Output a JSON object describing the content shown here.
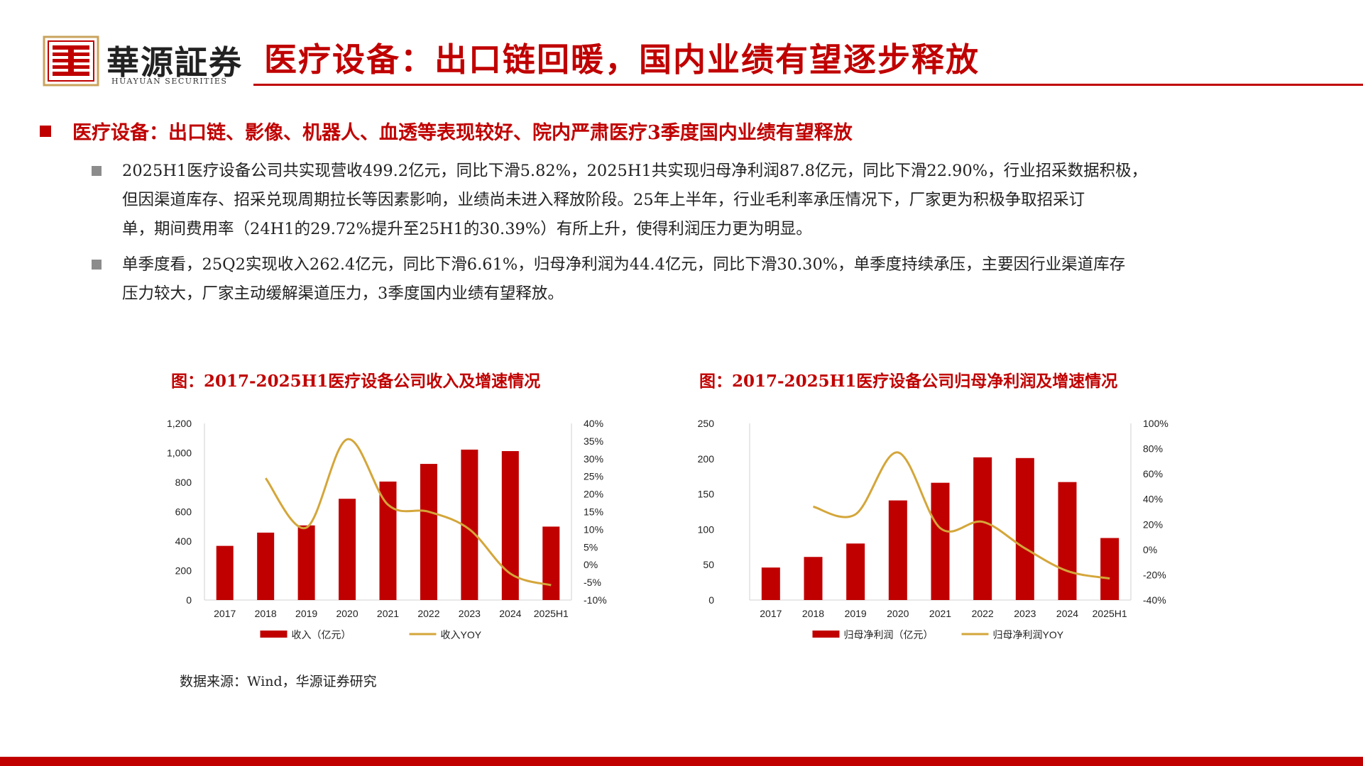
{
  "brand": {
    "name_cn": "華源証券",
    "name_en": "HUAYUAN SECURITIES",
    "logo_icon": "huayuan-seal-icon",
    "accent_color": "#c00000"
  },
  "page_title": "医疗设备：出口链回暖，国内业绩有望逐步释放",
  "headline": "医疗设备：出口链、影像、机器人、血透等表现较好、院内严肃医疗3季度国内业绩有望释放",
  "paragraphs": [
    {
      "lines": [
        "2025H1医疗设备公司共实现营收499.2亿元，同比下滑5.82%，2025H1共实现归母净利润87.8亿元，同比下滑22.90%，行业招采数据积极，",
        "但因渠道库存、招采兑现周期拉长等因素影响，业绩尚未进入释放阶段。25年上半年，行业毛利率承压情况下，厂家更为积极争取招采订",
        "单，期间费用率（24H1的29.72%提升至25H1的30.39%）有所上升，使得利润压力更为明显。"
      ]
    },
    {
      "lines": [
        "单季度看，25Q2实现收入262.4亿元，同比下滑6.61%，归母净利润为44.4亿元，同比下滑30.30%，单季度持续承压，主要因行业渠道库存",
        "压力较大，厂家主动缓解渠道压力，3季度国内业绩有望释放。"
      ]
    }
  ],
  "chart_data": [
    {
      "type": "bar+line",
      "title": "图：2017-2025H1医疗设备公司收入及增速情况",
      "categories": [
        "2017",
        "2018",
        "2019",
        "2020",
        "2021",
        "2022",
        "2023",
        "2024",
        "2025H1"
      ],
      "y_left": {
        "min": 0,
        "max": 1200,
        "ticks": [
          "1,200",
          "1,000",
          "800",
          "600",
          "400",
          "200",
          "0"
        ]
      },
      "y_right": {
        "min": -10,
        "max": 40,
        "ticks": [
          "40%",
          "35%",
          "30%",
          "25%",
          "20%",
          "15%",
          "10%",
          "5%",
          "0%",
          "-5%",
          "-10%"
        ]
      },
      "series": [
        {
          "name": "收入（亿元）",
          "kind": "bar",
          "axis": "left",
          "color": "#c00000",
          "values": [
            368,
            458,
            507,
            688,
            805,
            925,
            1022,
            1012,
            499
          ]
        },
        {
          "name": "收入YOY",
          "kind": "line",
          "axis": "right",
          "color": "#d4a63a",
          "values": [
            null,
            24.5,
            10.5,
            35.5,
            17,
            15,
            10,
            -2.5,
            -5.8
          ]
        }
      ],
      "grid": false,
      "legend": "bottom"
    },
    {
      "type": "bar+line",
      "title": "图：2017-2025H1医疗设备公司归母净利润及增速情况",
      "categories": [
        "2017",
        "2018",
        "2019",
        "2020",
        "2021",
        "2022",
        "2023",
        "2024",
        "2025H1"
      ],
      "y_left": {
        "min": 0,
        "max": 250,
        "ticks": [
          "250",
          "200",
          "150",
          "100",
          "50",
          "0"
        ]
      },
      "y_right": {
        "min": -40,
        "max": 100,
        "ticks": [
          "100%",
          "80%",
          "60%",
          "40%",
          "20%",
          "0%",
          "-20%",
          "-40%"
        ]
      },
      "series": [
        {
          "name": "归母净利润（亿元）",
          "kind": "bar",
          "axis": "left",
          "color": "#c00000",
          "values": [
            46,
            61,
            80,
            141,
            166,
            202,
            201,
            167,
            87.8
          ]
        },
        {
          "name": "归母净利润YOY",
          "kind": "line",
          "axis": "right",
          "color": "#d4a63a",
          "values": [
            null,
            34,
            28,
            77,
            17,
            22,
            1,
            -17,
            -22.9
          ]
        }
      ],
      "grid": false,
      "legend": "bottom"
    }
  ],
  "source": "数据来源：Wind，华源证券研究"
}
